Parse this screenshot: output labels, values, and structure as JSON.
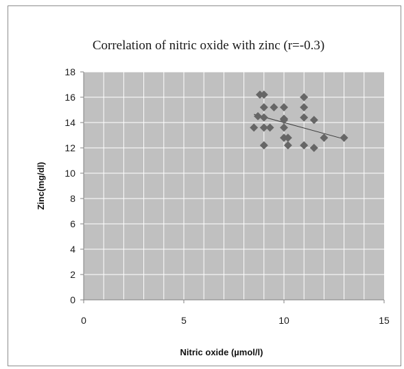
{
  "chart_data": {
    "type": "scatter",
    "title": "Correlation of nitric oxide with zinc (r=-0.3)",
    "xlabel": "Nitric oxide (µmol/l)",
    "ylabel": "Zinc(mg/dl)",
    "xlim": [
      0,
      15
    ],
    "ylim": [
      0,
      18
    ],
    "xticks": [
      "0",
      "5",
      "10",
      "15"
    ],
    "yticks": [
      "0",
      "2",
      "4",
      "6",
      "8",
      "10",
      "12",
      "14",
      "16",
      "18"
    ],
    "grid": true,
    "legend": "none",
    "marker": "diamond",
    "marker_color": "#666666",
    "plot_background": "#c0c0c0",
    "grid_color": "#ffffff",
    "points": [
      {
        "x": 8.8,
        "y": 16.2
      },
      {
        "x": 9.0,
        "y": 16.2
      },
      {
        "x": 11.0,
        "y": 16.0
      },
      {
        "x": 9.0,
        "y": 15.2
      },
      {
        "x": 9.5,
        "y": 15.2
      },
      {
        "x": 10.0,
        "y": 15.2
      },
      {
        "x": 11.0,
        "y": 15.2
      },
      {
        "x": 8.7,
        "y": 14.5
      },
      {
        "x": 9.0,
        "y": 14.4
      },
      {
        "x": 10.0,
        "y": 14.3
      },
      {
        "x": 10.0,
        "y": 14.2
      },
      {
        "x": 11.0,
        "y": 14.4
      },
      {
        "x": 11.5,
        "y": 14.2
      },
      {
        "x": 8.5,
        "y": 13.6
      },
      {
        "x": 9.0,
        "y": 13.6
      },
      {
        "x": 9.3,
        "y": 13.6
      },
      {
        "x": 10.0,
        "y": 13.6
      },
      {
        "x": 10.0,
        "y": 12.8
      },
      {
        "x": 10.2,
        "y": 12.8
      },
      {
        "x": 12.0,
        "y": 12.8
      },
      {
        "x": 13.0,
        "y": 12.8
      },
      {
        "x": 9.0,
        "y": 12.2
      },
      {
        "x": 10.2,
        "y": 12.2
      },
      {
        "x": 11.0,
        "y": 12.2
      },
      {
        "x": 11.5,
        "y": 12.0
      }
    ],
    "trendline": {
      "x": [
        8.5,
        13.0
      ],
      "y": [
        14.65,
        12.7
      ]
    }
  }
}
